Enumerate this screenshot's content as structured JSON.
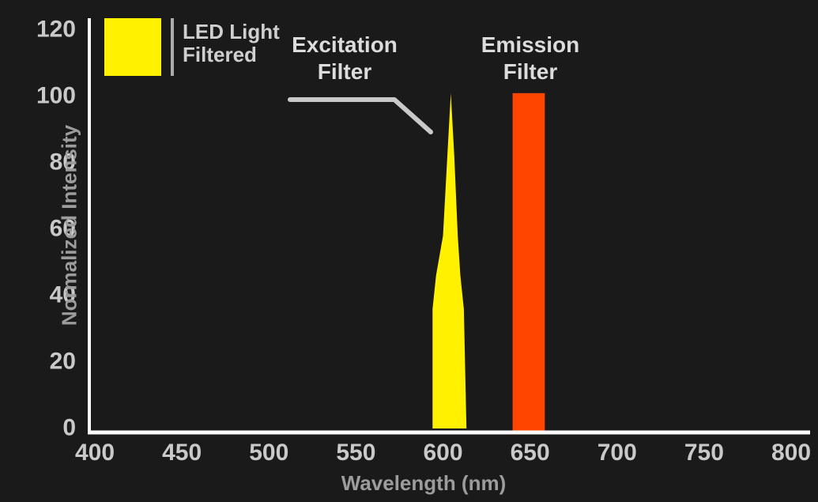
{
  "colors": {
    "background": "#1A1A1A",
    "axis": "#FAFAFA",
    "tick_label": "#C9C9C9",
    "excitation_yellow": "#FFF100",
    "emission_orange": "#FF4500"
  },
  "chart_data": {
    "type": "area",
    "title": "",
    "xlabel": "Wavelength (nm)",
    "ylabel": "Normalized Intensity",
    "xlim": [
      397,
      810
    ],
    "ylim": [
      0,
      124
    ],
    "x_ticks": [
      400,
      450,
      500,
      550,
      600,
      650,
      700,
      750,
      800
    ],
    "y_ticks": [
      0,
      20,
      40,
      60,
      80,
      100,
      120
    ],
    "grid": false,
    "legend": {
      "position": "top-left",
      "color": "#FFF100",
      "label_lines": [
        "LED Light",
        "Filtered"
      ]
    },
    "series": [
      {
        "name": "LED Light Filtered",
        "type": "area",
        "color": "#FFF100",
        "peak_nm": 604.5,
        "peak_intensity": 101,
        "points": [
          [
            594,
            0
          ],
          [
            594,
            36
          ],
          [
            596,
            46
          ],
          [
            600,
            58
          ],
          [
            602.5,
            82
          ],
          [
            604.5,
            101
          ],
          [
            606.5,
            82
          ],
          [
            608.5,
            58
          ],
          [
            610,
            46
          ],
          [
            612,
            36
          ],
          [
            613.5,
            0
          ]
        ]
      },
      {
        "name": "Emission Filter",
        "type": "band",
        "color": "#FF4500",
        "x_range": [
          640,
          658.5
        ],
        "height": 101
      }
    ],
    "annotations": [
      {
        "lines": [
          "Excitation",
          "Filter"
        ],
        "points_to": "excitation peak"
      },
      {
        "lines": [
          "Emission",
          "Filter"
        ],
        "points_to": "emission band"
      }
    ]
  }
}
